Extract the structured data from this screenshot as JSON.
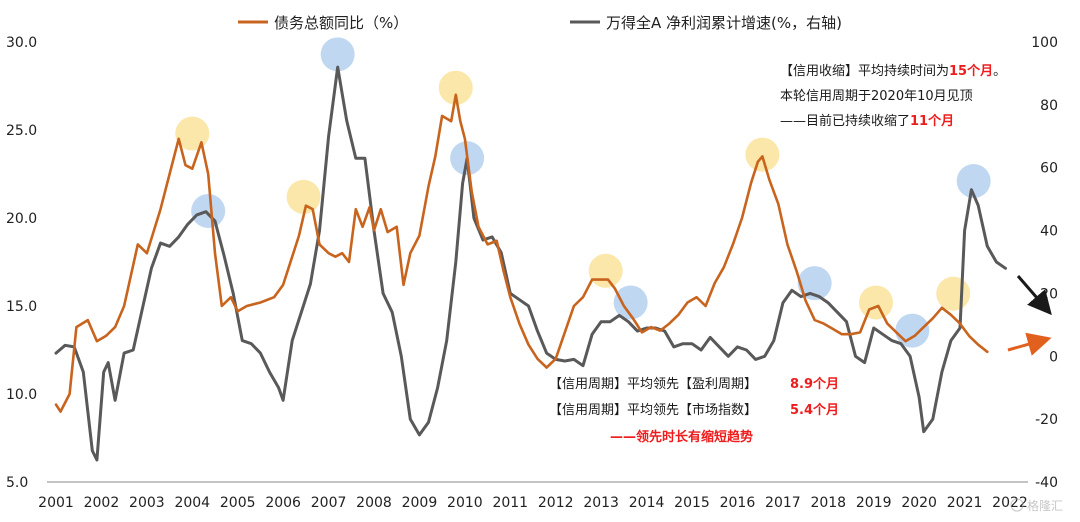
{
  "chart_data": {
    "type": "line",
    "legend": {
      "position": "top"
    },
    "x": [
      "2001",
      "2002",
      "2003",
      "2004",
      "2005",
      "2006",
      "2007",
      "2008",
      "2009",
      "2010",
      "2011",
      "2012",
      "2013",
      "2014",
      "2015",
      "2016",
      "2017",
      "2018",
      "2019",
      "2020",
      "2021",
      "2022"
    ],
    "y_left": {
      "ylim": [
        5,
        30
      ],
      "ticks": [
        "5.0",
        "10.0",
        "15.0",
        "20.0",
        "25.0",
        "30.0"
      ]
    },
    "y_right": {
      "ylim": [
        -40,
        100
      ],
      "ticks": [
        "-40",
        "-20",
        "0",
        "20",
        "40",
        "60",
        "80",
        "100"
      ]
    },
    "grid": false,
    "series": [
      {
        "name": "债务总额同比（%）",
        "axis": "left",
        "color": "#c8641e",
        "points": [
          [
            2001.0,
            9.4
          ],
          [
            2001.1,
            9.0
          ],
          [
            2001.3,
            10.0
          ],
          [
            2001.45,
            13.8
          ],
          [
            2001.7,
            14.2
          ],
          [
            2001.9,
            13.0
          ],
          [
            2002.1,
            13.3
          ],
          [
            2002.3,
            13.8
          ],
          [
            2002.5,
            15.0
          ],
          [
            2002.8,
            18.5
          ],
          [
            2003.0,
            18.0
          ],
          [
            2003.3,
            20.5
          ],
          [
            2003.5,
            22.5
          ],
          [
            2003.7,
            24.5
          ],
          [
            2003.85,
            23.0
          ],
          [
            2004.0,
            22.8
          ],
          [
            2004.2,
            24.3
          ],
          [
            2004.35,
            22.5
          ],
          [
            2004.5,
            18.0
          ],
          [
            2004.65,
            15.0
          ],
          [
            2004.85,
            15.5
          ],
          [
            2005.0,
            14.7
          ],
          [
            2005.2,
            15.0
          ],
          [
            2005.5,
            15.2
          ],
          [
            2005.8,
            15.5
          ],
          [
            2006.0,
            16.2
          ],
          [
            2006.2,
            17.8
          ],
          [
            2006.35,
            19.0
          ],
          [
            2006.5,
            20.7
          ],
          [
            2006.65,
            20.5
          ],
          [
            2006.8,
            18.5
          ],
          [
            2007.0,
            18.0
          ],
          [
            2007.15,
            17.8
          ],
          [
            2007.3,
            18.0
          ],
          [
            2007.45,
            17.5
          ],
          [
            2007.6,
            20.5
          ],
          [
            2007.75,
            19.5
          ],
          [
            2007.9,
            20.6
          ],
          [
            2008.0,
            19.3
          ],
          [
            2008.15,
            20.5
          ],
          [
            2008.3,
            19.2
          ],
          [
            2008.5,
            19.5
          ],
          [
            2008.65,
            16.2
          ],
          [
            2008.8,
            18.0
          ],
          [
            2009.0,
            19.0
          ],
          [
            2009.2,
            21.8
          ],
          [
            2009.35,
            23.5
          ],
          [
            2009.5,
            25.8
          ],
          [
            2009.7,
            25.5
          ],
          [
            2009.8,
            27.0
          ],
          [
            2009.9,
            25.5
          ],
          [
            2010.0,
            24.5
          ],
          [
            2010.15,
            21.5
          ],
          [
            2010.3,
            19.5
          ],
          [
            2010.5,
            18.5
          ],
          [
            2010.7,
            18.7
          ],
          [
            2010.85,
            17.0
          ],
          [
            2011.0,
            15.5
          ],
          [
            2011.2,
            14.0
          ],
          [
            2011.4,
            12.8
          ],
          [
            2011.6,
            12.0
          ],
          [
            2011.8,
            11.5
          ],
          [
            2012.0,
            12.0
          ],
          [
            2012.2,
            13.5
          ],
          [
            2012.4,
            15.0
          ],
          [
            2012.6,
            15.5
          ],
          [
            2012.8,
            16.5
          ],
          [
            2013.0,
            16.5
          ],
          [
            2013.15,
            16.5
          ],
          [
            2013.3,
            16.0
          ],
          [
            2013.5,
            15.0
          ],
          [
            2013.7,
            14.3
          ],
          [
            2013.9,
            13.5
          ],
          [
            2014.1,
            13.8
          ],
          [
            2014.3,
            13.6
          ],
          [
            2014.5,
            14.0
          ],
          [
            2014.7,
            14.5
          ],
          [
            2014.9,
            15.2
          ],
          [
            2015.1,
            15.5
          ],
          [
            2015.3,
            15.0
          ],
          [
            2015.5,
            16.3
          ],
          [
            2015.7,
            17.2
          ],
          [
            2015.9,
            18.5
          ],
          [
            2016.1,
            20.0
          ],
          [
            2016.3,
            22.0
          ],
          [
            2016.45,
            23.2
          ],
          [
            2016.55,
            23.5
          ],
          [
            2016.7,
            22.2
          ],
          [
            2016.9,
            20.8
          ],
          [
            2017.1,
            18.5
          ],
          [
            2017.3,
            17.0
          ],
          [
            2017.5,
            15.3
          ],
          [
            2017.7,
            14.2
          ],
          [
            2017.9,
            14.0
          ],
          [
            2018.1,
            13.7
          ],
          [
            2018.3,
            13.4
          ],
          [
            2018.5,
            13.4
          ],
          [
            2018.7,
            13.5
          ],
          [
            2018.9,
            14.8
          ],
          [
            2019.1,
            15.0
          ],
          [
            2019.3,
            14.0
          ],
          [
            2019.5,
            13.5
          ],
          [
            2019.7,
            13.0
          ],
          [
            2019.9,
            13.3
          ],
          [
            2020.1,
            13.8
          ],
          [
            2020.3,
            14.3
          ],
          [
            2020.5,
            14.9
          ],
          [
            2020.7,
            14.5
          ],
          [
            2020.9,
            14.0
          ],
          [
            2021.1,
            13.3
          ],
          [
            2021.3,
            12.8
          ],
          [
            2021.5,
            12.4
          ]
        ]
      },
      {
        "name": "万得全A 净利润累计增速(%，右轴)",
        "axis": "right",
        "color": "#595959",
        "points": [
          [
            2001.0,
            1.0
          ],
          [
            2001.2,
            3.5
          ],
          [
            2001.4,
            3.0
          ],
          [
            2001.6,
            -5.0
          ],
          [
            2001.8,
            -30.0
          ],
          [
            2001.9,
            -33.0
          ],
          [
            2002.05,
            -5.0
          ],
          [
            2002.15,
            -2.0
          ],
          [
            2002.3,
            -14.0
          ],
          [
            2002.5,
            1.0
          ],
          [
            2002.7,
            2.0
          ],
          [
            2002.9,
            15.0
          ],
          [
            2003.1,
            28.0
          ],
          [
            2003.3,
            36.0
          ],
          [
            2003.5,
            35.0
          ],
          [
            2003.7,
            38.0
          ],
          [
            2003.9,
            42.0
          ],
          [
            2004.1,
            45.0
          ],
          [
            2004.3,
            46.0
          ],
          [
            2004.5,
            43.0
          ],
          [
            2004.7,
            32.0
          ],
          [
            2004.9,
            20.0
          ],
          [
            2005.1,
            5.0
          ],
          [
            2005.3,
            4.0
          ],
          [
            2005.5,
            1.0
          ],
          [
            2005.7,
            -5.0
          ],
          [
            2005.9,
            -10.0
          ],
          [
            2006.0,
            -14.0
          ],
          [
            2006.2,
            5.0
          ],
          [
            2006.4,
            14.0
          ],
          [
            2006.6,
            23.0
          ],
          [
            2006.8,
            40.0
          ],
          [
            2007.0,
            70.0
          ],
          [
            2007.2,
            92.0
          ],
          [
            2007.4,
            75.0
          ],
          [
            2007.6,
            63.0
          ],
          [
            2007.8,
            63.0
          ],
          [
            2008.0,
            40.0
          ],
          [
            2008.2,
            20.0
          ],
          [
            2008.4,
            14.0
          ],
          [
            2008.6,
            0.0
          ],
          [
            2008.8,
            -20.0
          ],
          [
            2009.0,
            -25.0
          ],
          [
            2009.2,
            -21.0
          ],
          [
            2009.4,
            -10.0
          ],
          [
            2009.6,
            5.0
          ],
          [
            2009.8,
            30.0
          ],
          [
            2009.95,
            55.0
          ],
          [
            2010.05,
            63.0
          ],
          [
            2010.2,
            44.0
          ],
          [
            2010.4,
            37.0
          ],
          [
            2010.6,
            38.0
          ],
          [
            2010.8,
            33.0
          ],
          [
            2011.0,
            20.0
          ],
          [
            2011.2,
            18.0
          ],
          [
            2011.4,
            16.0
          ],
          [
            2011.6,
            8.0
          ],
          [
            2011.8,
            1.0
          ],
          [
            2012.0,
            -1.0
          ],
          [
            2012.2,
            -1.5
          ],
          [
            2012.4,
            -1.0
          ],
          [
            2012.6,
            -3.0
          ],
          [
            2012.8,
            7.0
          ],
          [
            2013.0,
            11.0
          ],
          [
            2013.2,
            11.0
          ],
          [
            2013.4,
            13.0
          ],
          [
            2013.6,
            11.0
          ],
          [
            2013.8,
            8.0
          ],
          [
            2014.0,
            9.0
          ],
          [
            2014.2,
            9.0
          ],
          [
            2014.4,
            8.0
          ],
          [
            2014.6,
            3.0
          ],
          [
            2014.8,
            4.0
          ],
          [
            2015.0,
            4.0
          ],
          [
            2015.2,
            2.0
          ],
          [
            2015.4,
            6.0
          ],
          [
            2015.6,
            3.0
          ],
          [
            2015.8,
            0.0
          ],
          [
            2016.0,
            3.0
          ],
          [
            2016.2,
            2.0
          ],
          [
            2016.4,
            -1.0
          ],
          [
            2016.6,
            0.0
          ],
          [
            2016.8,
            5.0
          ],
          [
            2017.0,
            17.0
          ],
          [
            2017.2,
            21.0
          ],
          [
            2017.4,
            19.0
          ],
          [
            2017.6,
            20.0
          ],
          [
            2017.8,
            19.0
          ],
          [
            2018.0,
            17.0
          ],
          [
            2018.2,
            14.0
          ],
          [
            2018.4,
            11.0
          ],
          [
            2018.6,
            0.0
          ],
          [
            2018.8,
            -2.0
          ],
          [
            2019.0,
            9.0
          ],
          [
            2019.2,
            7.0
          ],
          [
            2019.4,
            5.0
          ],
          [
            2019.6,
            4.0
          ],
          [
            2019.8,
            0.0
          ],
          [
            2020.0,
            -13.0
          ],
          [
            2020.1,
            -24.0
          ],
          [
            2020.3,
            -20.0
          ],
          [
            2020.5,
            -5.0
          ],
          [
            2020.7,
            5.0
          ],
          [
            2020.9,
            9.0
          ],
          [
            2021.0,
            40.0
          ],
          [
            2021.15,
            53.0
          ],
          [
            2021.3,
            48.0
          ],
          [
            2021.5,
            35.0
          ],
          [
            2021.7,
            30.0
          ],
          [
            2021.9,
            28.0
          ]
        ]
      }
    ],
    "markers": [
      {
        "x": 2004.0,
        "y_left": 24.8,
        "color": "yellow"
      },
      {
        "x": 2004.35,
        "y_left": 20.4,
        "color": "blue"
      },
      {
        "x": 2006.45,
        "y_left": 21.2,
        "color": "yellow"
      },
      {
        "x": 2007.2,
        "y_left": 29.3,
        "color": "blue"
      },
      {
        "x": 2009.8,
        "y_left": 27.4,
        "color": "yellow"
      },
      {
        "x": 2010.05,
        "y_left": 23.4,
        "color": "blue"
      },
      {
        "x": 2016.55,
        "y_left": 23.6,
        "color": "yellow"
      },
      {
        "x": 2013.1,
        "y_left": 17.0,
        "color": "yellow"
      },
      {
        "x": 2013.65,
        "y_left": 15.2,
        "color": "blue"
      },
      {
        "x": 2017.7,
        "y_left": 16.3,
        "color": "blue"
      },
      {
        "x": 2019.05,
        "y_left": 15.2,
        "color": "yellow"
      },
      {
        "x": 2019.85,
        "y_left": 13.6,
        "color": "blue"
      },
      {
        "x": 2020.75,
        "y_left": 15.7,
        "color": "yellow"
      },
      {
        "x": 2021.2,
        "y_left": 22.1,
        "color": "blue"
      }
    ],
    "annotations": {
      "top_right": [
        [
          {
            "text": "【信用收缩】平均持续时间为",
            "color": "dark"
          },
          {
            "text": "15个月",
            "color": "red"
          },
          {
            "text": "。",
            "color": "dark"
          }
        ],
        [
          {
            "text": "本轮信用周期于2020年10月见顶",
            "color": "dark"
          }
        ],
        [
          {
            "text": "——目前已持续收缩了",
            "color": "dark"
          },
          {
            "text": "11个月",
            "color": "red"
          }
        ]
      ],
      "bottom_center": [
        [
          {
            "text": "【信用周期】平均领先【盈利周期】",
            "color": "dark"
          },
          {
            "text": "8.9个月",
            "color": "red"
          }
        ],
        [
          {
            "text": "【信用周期】平均领先【市场指数】",
            "color": "dark"
          },
          {
            "text": "5.4个月",
            "color": "red"
          }
        ],
        [
          {
            "text": "——领先时长有缩短趋势",
            "color": "red"
          }
        ]
      ]
    },
    "arrows": [
      {
        "series": "万得全A 净利润累计增速(%，右轴)",
        "direction": "down"
      },
      {
        "series": "债务总额同比（%）",
        "direction": "up"
      }
    ]
  },
  "watermark": {
    "text": "格隆汇"
  },
  "colors": {
    "marker_yellow": "#fbe4a0",
    "marker_blue": "#b9d3ef",
    "arrow_dark": "#1a1a1a",
    "arrow_orange": "#e2601e"
  }
}
